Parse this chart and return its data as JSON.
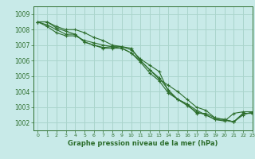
{
  "title": "",
  "xlabel": "Graphe pression niveau de la mer (hPa)",
  "ylabel": "",
  "background_color": "#c8eae8",
  "grid_color": "#aad4cc",
  "line_color": "#2d6e2d",
  "xlim": [
    -0.5,
    23
  ],
  "ylim": [
    1001.5,
    1009.5
  ],
  "xticks": [
    0,
    1,
    2,
    3,
    4,
    5,
    6,
    7,
    8,
    9,
    10,
    11,
    12,
    13,
    14,
    15,
    16,
    17,
    18,
    19,
    20,
    21,
    22,
    23
  ],
  "yticks": [
    1002,
    1003,
    1004,
    1005,
    1006,
    1007,
    1008,
    1009
  ],
  "series": [
    [
      1008.5,
      1008.5,
      1008.2,
      1008.0,
      1008.0,
      1007.8,
      1007.5,
      1007.3,
      1007.0,
      1006.9,
      1006.7,
      1006.1,
      1005.7,
      1005.3,
      1004.0,
      1003.5,
      1003.2,
      1002.8,
      1002.5,
      1002.2,
      1002.1,
      1002.6,
      1002.7,
      1002.7
    ],
    [
      1008.5,
      1008.3,
      1008.0,
      1007.7,
      1007.7,
      1007.2,
      1007.0,
      1006.85,
      1006.9,
      1006.9,
      1006.8,
      1006.0,
      1005.4,
      1004.8,
      1004.4,
      1004.0,
      1003.5,
      1003.0,
      1002.8,
      1002.3,
      1002.2,
      1002.05,
      1002.6,
      1002.6
    ],
    [
      1008.5,
      1008.5,
      1008.1,
      1007.9,
      1007.7,
      1007.2,
      1007.0,
      1006.8,
      1006.8,
      1006.8,
      1006.5,
      1005.9,
      1005.2,
      1004.7,
      1003.9,
      1003.5,
      1003.1,
      1002.7,
      1002.5,
      1002.2,
      1002.15,
      1002.05,
      1002.6,
      1002.6
    ],
    [
      1008.5,
      1008.2,
      1007.8,
      1007.6,
      1007.6,
      1007.3,
      1007.15,
      1007.0,
      1006.9,
      1006.8,
      1006.5,
      1006.0,
      1005.4,
      1004.9,
      1004.1,
      1003.5,
      1003.2,
      1002.6,
      1002.6,
      1002.3,
      1002.2,
      1002.05,
      1002.5,
      1002.7
    ]
  ],
  "xlabel_fontsize": 6,
  "ytick_fontsize": 5.5,
  "xtick_fontsize": 4.5
}
